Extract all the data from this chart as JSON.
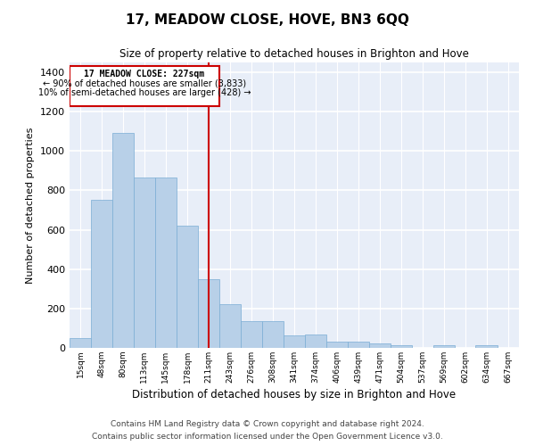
{
  "title": "17, MEADOW CLOSE, HOVE, BN3 6QQ",
  "subtitle": "Size of property relative to detached houses in Brighton and Hove",
  "xlabel": "Distribution of detached houses by size in Brighton and Hove",
  "ylabel": "Number of detached properties",
  "footer1": "Contains HM Land Registry data © Crown copyright and database right 2024.",
  "footer2": "Contains public sector information licensed under the Open Government Licence v3.0.",
  "annotation_line1": "17 MEADOW CLOSE: 227sqm",
  "annotation_line2": "← 90% of detached houses are smaller (3,833)",
  "annotation_line3": "10% of semi-detached houses are larger (428) →",
  "property_size": 227,
  "bar_color": "#b8d0e8",
  "bar_edge_color": "#7aadd4",
  "annotation_line_color": "#cc0000",
  "annotation_box_color": "#cc0000",
  "background_color": "#e8eef8",
  "fig_background": "#ffffff",
  "categories": [
    "15sqm",
    "48sqm",
    "80sqm",
    "113sqm",
    "145sqm",
    "178sqm",
    "211sqm",
    "243sqm",
    "276sqm",
    "308sqm",
    "341sqm",
    "374sqm",
    "406sqm",
    "439sqm",
    "471sqm",
    "504sqm",
    "537sqm",
    "569sqm",
    "602sqm",
    "634sqm",
    "667sqm"
  ],
  "bin_edges": [
    15,
    48,
    80,
    113,
    145,
    178,
    211,
    243,
    276,
    308,
    341,
    374,
    406,
    439,
    471,
    504,
    537,
    569,
    602,
    634,
    667,
    700
  ],
  "values": [
    50,
    750,
    1090,
    865,
    865,
    620,
    350,
    220,
    135,
    135,
    65,
    70,
    32,
    30,
    22,
    15,
    0,
    12,
    0,
    12,
    0
  ],
  "ylim": [
    0,
    1450
  ],
  "yticks": [
    0,
    200,
    400,
    600,
    800,
    1000,
    1200,
    1400
  ]
}
